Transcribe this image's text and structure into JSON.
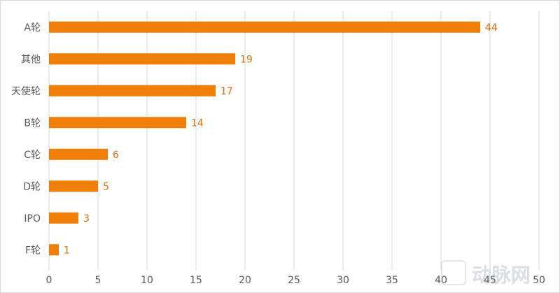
{
  "chart_data": {
    "type": "bar",
    "orientation": "horizontal",
    "categories": [
      "A轮",
      "其他",
      "天使轮",
      "B轮",
      "C轮",
      "D轮",
      "IPO",
      "F轮"
    ],
    "values": [
      44,
      19,
      17,
      14,
      6,
      5,
      3,
      1
    ],
    "xlim": [
      0,
      50
    ],
    "xticks": [
      0,
      5,
      10,
      15,
      20,
      25,
      30,
      35,
      40,
      45,
      50
    ],
    "grid": "vertical",
    "bar_color": "#f07f09",
    "label_color": "#e36c09"
  },
  "watermark": {
    "text": "动脉网",
    "logo_icon": "vb-logo-icon"
  }
}
